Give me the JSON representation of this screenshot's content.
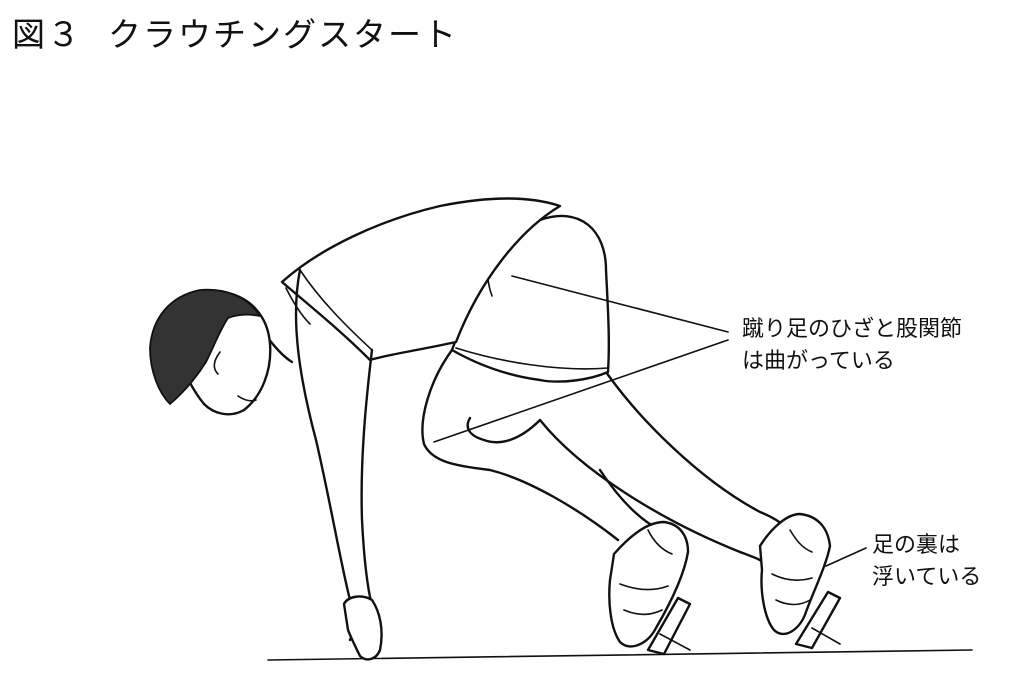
{
  "figure": {
    "number": "図３",
    "title": "クラウチングスタート"
  },
  "annotations": {
    "hip_knee": {
      "line1": "蹴り足のひざと股関節",
      "line2": "は曲がっている"
    },
    "sole": {
      "line1": "足の裏は",
      "line2": "浮いている"
    }
  },
  "colors": {
    "ink": "#111111",
    "hair": "#333333",
    "background": "#ffffff"
  }
}
